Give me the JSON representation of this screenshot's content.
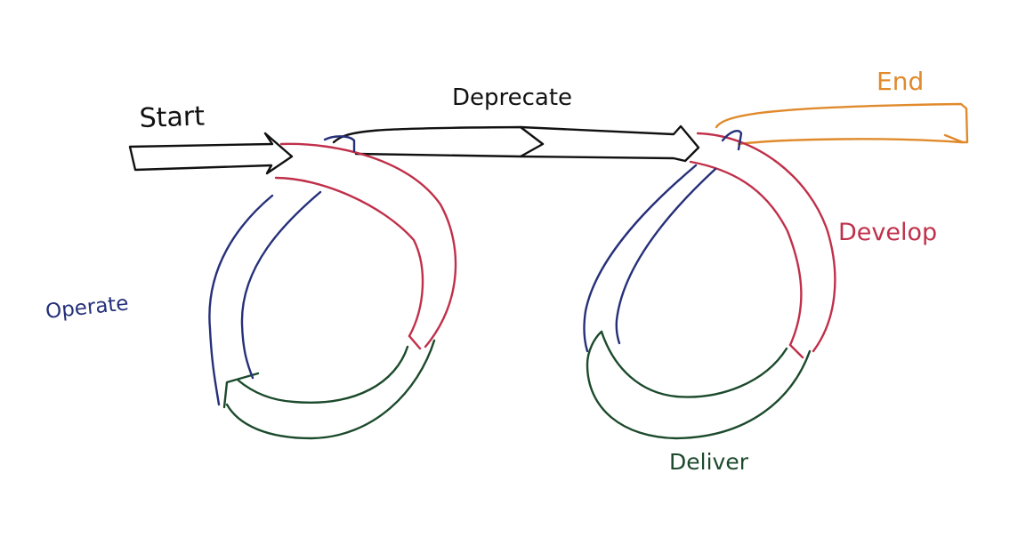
{
  "labels": {
    "start": "Start",
    "deprecate": "Deprecate",
    "end": "End",
    "develop": "Develop",
    "operate": "Operate",
    "deliver": "Deliver"
  },
  "colors": {
    "start": "#111111",
    "deprecate": "#111111",
    "end": "#e08a2c",
    "develop": "#c0304a",
    "operate": "#26307a",
    "deliver": "#1c4a2c"
  }
}
